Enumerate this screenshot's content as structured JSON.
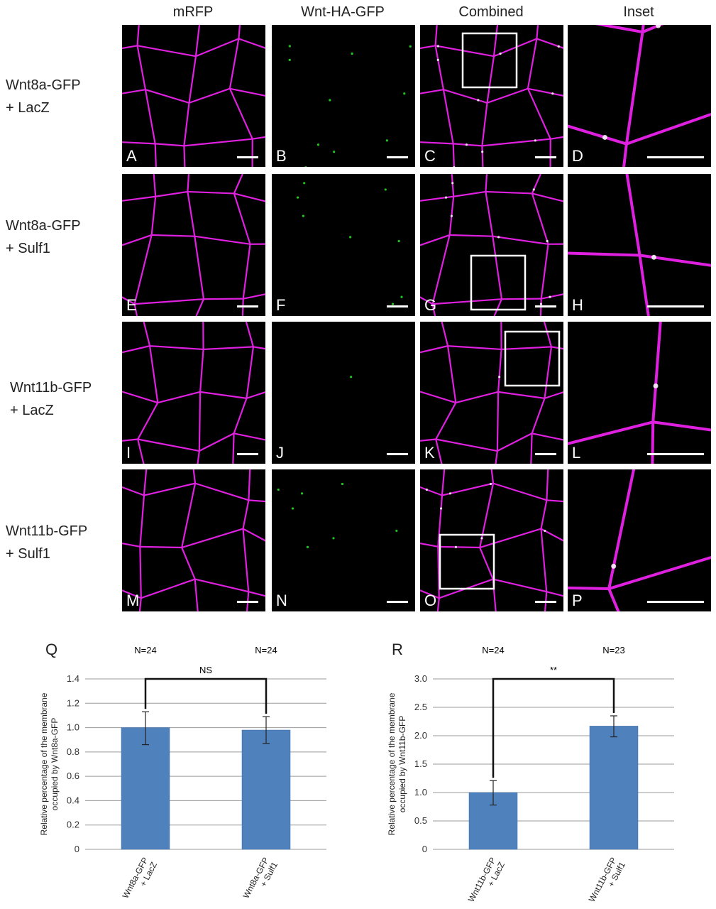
{
  "columns": [
    "mRFP",
    "Wnt-HA-GFP",
    "Combined",
    "Inset"
  ],
  "rows": [
    {
      "line1": "Wnt8a-GFP",
      "line2": "+ LacZ",
      "panels": [
        "A",
        "B",
        "C",
        "D"
      ]
    },
    {
      "line1": "Wnt8a-GFP",
      "line2": "+ Sulf1",
      "panels": [
        "E",
        "F",
        "G",
        "H"
      ]
    },
    {
      "line1": "Wnt11b-GFP",
      "line2": "+ LacZ",
      "panels": [
        "I",
        "J",
        "K",
        "L"
      ]
    },
    {
      "line1": "Wnt11b-GFP",
      "line2": "+ Sulf1",
      "panels": [
        "M",
        "N",
        "O",
        "P"
      ]
    }
  ],
  "colors": {
    "membrane": "#e020e0",
    "gfp": "#22dd22",
    "bar": "#4f81bd",
    "background": "#000000"
  },
  "chart_data": [
    {
      "type": "bar",
      "panel_letter": "Q",
      "categories": [
        "Wnt8a-GFP + LacZ",
        "Wnt8a-GFP + Sulf1"
      ],
      "category_lines": [
        [
          "Wnt8a-GFP",
          "+ LacZ"
        ],
        [
          "Wnt8a-GFP",
          "+ Sulf1"
        ]
      ],
      "values": [
        1.0,
        0.98
      ],
      "error_low": [
        0.86,
        0.87
      ],
      "error_high": [
        1.13,
        1.09
      ],
      "n_labels": [
        "N=24",
        "N=24"
      ],
      "significance": "NS",
      "ylabel_line1": "Relative percentage of the membrane",
      "ylabel_line2": "occupied by Wnt8a-GFP",
      "ylim": [
        0,
        1.4
      ],
      "yticks": [
        0,
        0.2,
        0.4,
        0.6,
        0.8,
        1.0,
        1.2,
        1.4
      ],
      "ytick_labels": [
        "0",
        "0.2",
        "0.4",
        "0.6",
        "0.8",
        "1.0",
        "1.2",
        "1.4"
      ],
      "grid": true
    },
    {
      "type": "bar",
      "panel_letter": "R",
      "categories": [
        "Wnt11b-GFP + LacZ",
        "Wnt11b-GFP + Sulf1"
      ],
      "category_lines": [
        [
          "Wnt11b-GFP",
          "+ LacZ"
        ],
        [
          "Wnt11b-GFP",
          "+ Sulf1"
        ]
      ],
      "values": [
        1.0,
        2.17
      ],
      "error_low": [
        0.78,
        1.98
      ],
      "error_high": [
        1.21,
        2.35
      ],
      "n_labels": [
        "N=24",
        "N=23"
      ],
      "significance": "**",
      "ylabel_line1": "Relative percentage of the membrane",
      "ylabel_line2": "occupied by Wnt11b-GFP",
      "ylim": [
        0,
        3.0
      ],
      "yticks": [
        0,
        0.5,
        1.0,
        1.5,
        2.0,
        2.5,
        3.0
      ],
      "ytick_labels": [
        "0",
        "0.5",
        "1.0",
        "1.5",
        "2.0",
        "2.5",
        "3.0"
      ],
      "grid": true
    }
  ]
}
